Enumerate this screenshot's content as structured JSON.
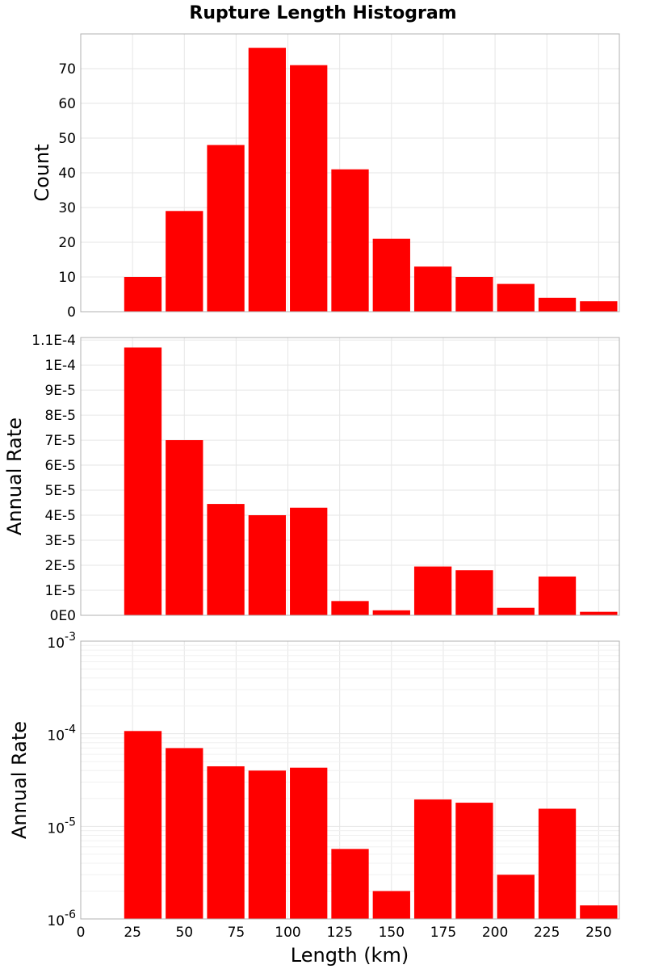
{
  "chart_data": {
    "title": "Rupture Length Histogram",
    "xlabel": "Length (km)",
    "xlim": [
      0,
      260
    ],
    "xticks": [
      0,
      25,
      50,
      75,
      100,
      125,
      150,
      175,
      200,
      225,
      250
    ],
    "bin_centers": [
      30,
      50,
      70,
      90,
      110,
      130,
      150,
      170,
      190,
      210,
      230,
      250
    ],
    "bin_width": 20,
    "bar_color": "#ff0000",
    "panels": [
      {
        "type": "bar",
        "ylabel": "Count",
        "yscale": "linear",
        "ylim": [
          0,
          80
        ],
        "yticks": [
          0,
          10,
          20,
          30,
          40,
          50,
          60,
          70
        ],
        "ytick_labels": [
          "0",
          "10",
          "20",
          "30",
          "40",
          "50",
          "60",
          "70"
        ],
        "values": [
          10,
          29,
          48,
          76,
          71,
          41,
          21,
          13,
          10,
          8,
          4,
          3
        ]
      },
      {
        "type": "bar",
        "ylabel": "Annual Rate",
        "yscale": "linear",
        "ylim": [
          0,
          0.000111
        ],
        "yticks": [
          0,
          1e-05,
          2e-05,
          3e-05,
          4e-05,
          5e-05,
          6e-05,
          7e-05,
          8e-05,
          9e-05,
          0.0001,
          0.00011
        ],
        "ytick_labels": [
          "0E0",
          "1E-5",
          "2E-5",
          "3E-5",
          "4E-5",
          "5E-5",
          "6E-5",
          "7E-5",
          "8E-5",
          "9E-5",
          "1E-4",
          "1.1E-4"
        ],
        "values": [
          0.000107,
          7e-05,
          4.45e-05,
          4e-05,
          4.3e-05,
          5.7e-06,
          2e-06,
          1.95e-05,
          1.8e-05,
          3e-06,
          1.55e-05,
          1.4e-06
        ]
      },
      {
        "type": "bar",
        "ylabel": "Annual Rate",
        "yscale": "log",
        "ylim": [
          1e-06,
          0.001
        ],
        "ytick_exponents": [
          -6,
          -5,
          -4,
          -3
        ],
        "ytick_base": "10",
        "values": [
          0.000107,
          7e-05,
          4.45e-05,
          4e-05,
          4.3e-05,
          5.7e-06,
          2e-06,
          1.95e-05,
          1.8e-05,
          3e-06,
          1.55e-05,
          1.4e-06
        ]
      }
    ]
  }
}
